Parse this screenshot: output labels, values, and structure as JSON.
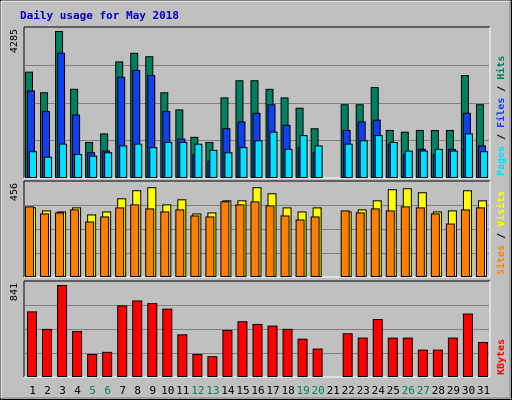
{
  "title": "Daily usage for May 2018",
  "days": [
    "1",
    "2",
    "3",
    "4",
    "5",
    "6",
    "7",
    "8",
    "9",
    "10",
    "11",
    "12",
    "13",
    "14",
    "15",
    "16",
    "17",
    "18",
    "19",
    "20",
    "21",
    "22",
    "23",
    "24",
    "25",
    "26",
    "27",
    "28",
    "29",
    "30",
    "31"
  ],
  "weekend_days": [
    5,
    6,
    12,
    13,
    19,
    20,
    26,
    27
  ],
  "colors": {
    "background": "#c0c0c0",
    "pages": "#00e0ff",
    "files": "#1040f0",
    "hits": "#008060",
    "visits": "#ffff00",
    "sites": "#ff8000",
    "kbytes": "#ff0000",
    "title": "#0000cc",
    "weekend_label": "#00805c"
  },
  "chart_data": [
    {
      "type": "bar",
      "name": "hits-files-pages",
      "ymax_label": "4285",
      "ylim": [
        0,
        4285
      ],
      "legend": [
        "Pages",
        "Files",
        "Hits"
      ],
      "categories": [
        "1",
        "2",
        "3",
        "4",
        "5",
        "6",
        "7",
        "8",
        "9",
        "10",
        "11",
        "12",
        "13",
        "14",
        "15",
        "16",
        "17",
        "18",
        "19",
        "20",
        "21",
        "22",
        "23",
        "24",
        "25",
        "26",
        "27",
        "28",
        "29",
        "30",
        "31"
      ],
      "series": [
        {
          "name": "Hits",
          "values": [
            3100,
            2500,
            4285,
            2600,
            1050,
            1300,
            3400,
            3650,
            3550,
            2500,
            2000,
            1200,
            1050,
            2350,
            2850,
            2850,
            2600,
            2350,
            2050,
            1450,
            0,
            2150,
            2150,
            2650,
            1400,
            1350,
            1400,
            1400,
            1400,
            3000,
            2150
          ]
        },
        {
          "name": "Files",
          "values": [
            2550,
            1950,
            3650,
            1850,
            750,
            800,
            2950,
            3150,
            3000,
            1950,
            1150,
            700,
            500,
            1450,
            1650,
            1900,
            2150,
            1550,
            900,
            750,
            0,
            1400,
            1650,
            1700,
            1000,
            700,
            850,
            700,
            850,
            1900,
            950
          ]
        },
        {
          "name": "Pages",
          "values": [
            780,
            620,
            1000,
            700,
            650,
            750,
            950,
            1000,
            900,
            1050,
            1050,
            1000,
            820,
            750,
            900,
            1100,
            1350,
            850,
            1250,
            950,
            0,
            1000,
            1100,
            1250,
            1050,
            800,
            800,
            850,
            800,
            1300,
            780
          ]
        }
      ]
    },
    {
      "type": "bar",
      "name": "visits-sites",
      "ymax_label": "456",
      "ylim": [
        0,
        456
      ],
      "legend": [
        "Sites",
        "Visits"
      ],
      "categories": [
        "1",
        "2",
        "3",
        "4",
        "5",
        "6",
        "7",
        "8",
        "9",
        "10",
        "11",
        "12",
        "13",
        "14",
        "15",
        "16",
        "17",
        "18",
        "19",
        "20",
        "21",
        "22",
        "23",
        "24",
        "25",
        "26",
        "27",
        "28",
        "29",
        "30",
        "31"
      ],
      "series": [
        {
          "name": "Visits",
          "values": [
            345,
            330,
            325,
            345,
            310,
            325,
            390,
            430,
            445,
            360,
            385,
            315,
            320,
            380,
            380,
            445,
            415,
            345,
            325,
            345,
            0,
            325,
            335,
            380,
            435,
            440,
            420,
            325,
            330,
            430,
            380
          ]
        },
        {
          "name": "Sites",
          "values": [
            350,
            315,
            320,
            335,
            275,
            300,
            345,
            360,
            340,
            325,
            335,
            305,
            300,
            375,
            360,
            375,
            355,
            305,
            285,
            300,
            0,
            330,
            320,
            340,
            330,
            350,
            345,
            315,
            265,
            335,
            345
          ]
        }
      ]
    },
    {
      "type": "bar",
      "name": "kbytes",
      "ymax_label": "841",
      "ylim": [
        0,
        841
      ],
      "legend": [
        "KBytes"
      ],
      "categories": [
        "1",
        "2",
        "3",
        "4",
        "5",
        "6",
        "7",
        "8",
        "9",
        "10",
        "11",
        "12",
        "13",
        "14",
        "15",
        "16",
        "17",
        "18",
        "19",
        "20",
        "21",
        "22",
        "23",
        "24",
        "25",
        "26",
        "27",
        "28",
        "29",
        "30",
        "31"
      ],
      "series": [
        {
          "name": "KBytes",
          "values": [
            600,
            440,
            841,
            420,
            210,
            230,
            655,
            700,
            675,
            625,
            390,
            210,
            190,
            430,
            510,
            485,
            470,
            440,
            350,
            260,
            0,
            400,
            360,
            530,
            360,
            360,
            250,
            250,
            360,
            580,
            320
          ]
        }
      ]
    }
  ]
}
